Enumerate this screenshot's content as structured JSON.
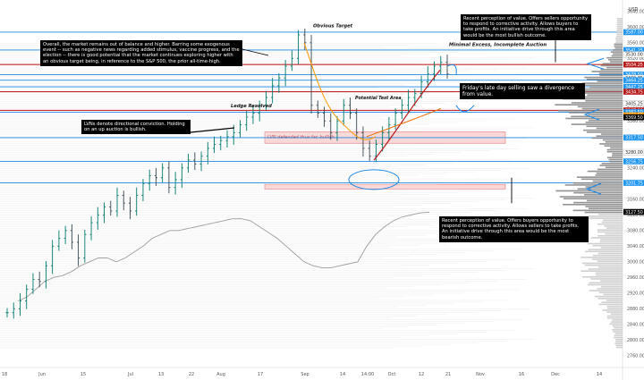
{
  "chart_data": {
    "type": "candlestick",
    "symbol_unit": "USD",
    "x_tick_labels": [
      "18",
      "Jun",
      "15",
      "Jul",
      "13",
      "22",
      "Aug",
      "17",
      "Sep",
      "14",
      "14:00",
      "Oct",
      "12",
      "21",
      "Nov",
      "16",
      "Dec",
      "14"
    ],
    "y_tick_labels": [
      "3640.00",
      "3600.00",
      "3560.00",
      "3520.00",
      "3480.00",
      "3440.00",
      "3400.00",
      "3360.00",
      "3320.00",
      "3280.00",
      "3240.00",
      "3200.00",
      "3160.00",
      "3120.00",
      "3080.00",
      "3040.00",
      "3000.00",
      "2960.00",
      "2920.00",
      "2880.00",
      "2840.00",
      "2800.00",
      "2760.00"
    ],
    "ylim": [
      2730,
      3660
    ],
    "price_levels": [
      {
        "label": "3587.00",
        "value": 3587.0,
        "color": "#2196f3"
      },
      {
        "label": "3541.25",
        "value": 3541.25,
        "color": "#2196f3"
      },
      {
        "label": "3530.00",
        "value": 3530.0,
        "color": "#ffffff"
      },
      {
        "label": "3504.25",
        "value": 3504.25,
        "color": "#b71c1c"
      },
      {
        "label": "3478.50",
        "value": 3478.5,
        "color": "#2196f3"
      },
      {
        "label": "3469.75",
        "value": 3469.75,
        "color": "#ffffff"
      },
      {
        "label": "3464.25",
        "value": 3464.25,
        "color": "#2196f3"
      },
      {
        "label": "3447.25",
        "value": 3447.25,
        "color": "#2196f3"
      },
      {
        "label": "3434.75",
        "value": 3434.75,
        "color": "#b71c1c"
      },
      {
        "label": "3405.25",
        "value": 3405.25,
        "color": "#ffffff"
      },
      {
        "label": "3387.00",
        "value": 3387.0,
        "color": "#b71c1c"
      },
      {
        "label": "3382.50",
        "value": 3382.5,
        "color": "#2196f3"
      },
      {
        "label": "3370.00",
        "value": 3370.0,
        "color": "#ffffff"
      },
      {
        "label": "3374.50",
        "value": 3374.5,
        "color": "#ff9800"
      },
      {
        "label": "3370.00",
        "value": 3370.0,
        "color": "#ff9800"
      },
      {
        "label": "3369.50",
        "value": 3369.5,
        "color": "#000000"
      },
      {
        "label": "3317.50",
        "value": 3317.5,
        "color": "#2196f3"
      },
      {
        "label": "3280.00",
        "value": 3280.0,
        "color": "#ffffff"
      },
      {
        "label": "3256.75",
        "value": 3256.75,
        "color": "#2196f3"
      },
      {
        "label": "3201.75",
        "value": 3201.75,
        "color": "#2196f3"
      },
      {
        "label": "3127.50",
        "value": 3127.5,
        "color": "#000000"
      }
    ],
    "annotations": [
      {
        "id": "overview",
        "text": "Overall, the market remains out of balance and higher. Barring some exogenous event -- such as negative news regarding added stimulus, vaccine progress, and the election -- there is good potential that the market continues exploring higher with an obvious target being, in reference to the S&P 500, the prior all-time-high."
      },
      {
        "id": "lvn",
        "text": "LVNs denote directional conviction. Holding on an up auction is bullish."
      },
      {
        "id": "upper-value",
        "text": "Recent perception of value. Offers sellers opportunity to respond to corrective activity. Allows buyers to take profits. An initiative drive through this area would be the most bullish outcome."
      },
      {
        "id": "lower-value",
        "text": "Recent perception of value. Offers buyers opportunity to respond to corrective activity. Allows sellers to take profits. An initiative drive through this area would be the most bearish outcome."
      },
      {
        "id": "divergence",
        "text": "Friday's late day selling saw a divergence from value."
      },
      {
        "id": "obvious-target",
        "text": "Obvious Target"
      },
      {
        "id": "minimal-excess",
        "text": "Minimal Excess, Incomplete Auction"
      },
      {
        "id": "ledge-resolved",
        "text": "Ledge Resolved"
      },
      {
        "id": "potential-test",
        "text": "Potential Test Area"
      },
      {
        "id": "lvn-defended",
        "text": "LVN defended thus far, bullish."
      }
    ],
    "highlight_zones": [
      {
        "from": 3303,
        "to": 3332,
        "color": "#fdd7d7"
      },
      {
        "from": 3186,
        "to": 3198,
        "color": "#fdd7d7"
      }
    ],
    "series": [
      {
        "name": "",
        "type": "ohlc",
        "color": "#00897b",
        "values": [
          2870,
          2880,
          2900,
          2930,
          2955,
          2950,
          2990,
          3040,
          3060,
          3080,
          3050,
          3010,
          3070,
          3100,
          3120,
          3140,
          3130,
          3170,
          3150,
          3130,
          3170,
          3200,
          3220,
          3215,
          3240,
          3190,
          3210,
          3240,
          3260,
          3250,
          3270,
          3290,
          3300,
          3310,
          3320,
          3330,
          3350,
          3370,
          3380,
          3400,
          3420,
          3450,
          3470,
          3500,
          3520,
          3580,
          3560,
          3400,
          3380,
          3360,
          3330,
          3360,
          3400,
          3380,
          3330,
          3290,
          3270,
          3300,
          3330,
          3350,
          3380,
          3400,
          3420,
          3430,
          3460,
          3480,
          3500,
          3510,
          3480
        ]
      },
      {
        "name": "",
        "type": "line",
        "color": "#9e9e9e",
        "values": [
          2900,
          2910,
          2930,
          2950,
          2960,
          2965,
          2975,
          2990,
          3000,
          3010,
          3010,
          3000,
          3010,
          3025,
          3040,
          3060,
          3070,
          3080,
          3080,
          3085,
          3090,
          3095,
          3100,
          3105,
          3110,
          3110,
          3105,
          3090,
          3075,
          3060,
          3040,
          3020,
          3000,
          2990,
          2985,
          2985,
          2990,
          2995,
          3000,
          3040,
          3070,
          3090,
          3105,
          3115,
          3120,
          3125,
          3127
        ]
      }
    ]
  }
}
